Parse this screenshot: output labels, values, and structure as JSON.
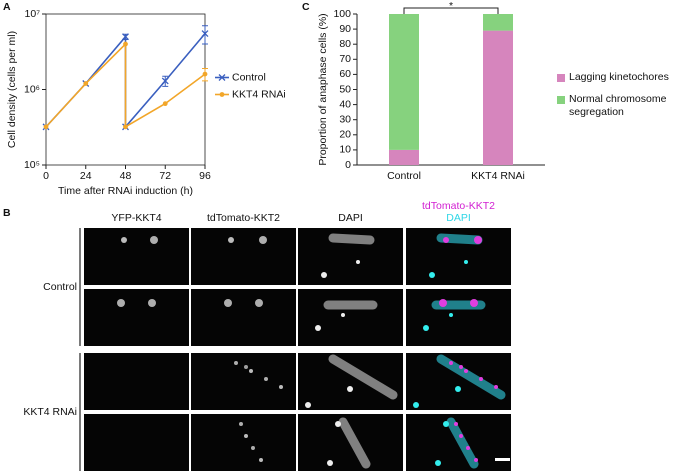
{
  "panels": [
    "A",
    "B",
    "C"
  ],
  "chart_data": [
    {
      "type": "line",
      "log_y": true,
      "x_label": "Time after RNAi induction (h)",
      "y_label": "Cell density (cells per ml)",
      "xlim": [
        0,
        96
      ],
      "xticks": [
        0,
        24,
        48,
        72,
        96
      ],
      "ylim": [
        100000,
        10000000
      ],
      "yticks": [
        {
          "value": 100000,
          "label": "10⁵"
        },
        {
          "value": 1000000,
          "label": "10⁶"
        },
        {
          "value": 10000000,
          "label": "10⁷"
        }
      ],
      "legend": "right",
      "series": [
        {
          "name": "Control",
          "color": "#3a5fbf",
          "marker": "x",
          "x": [
            0,
            24,
            48,
            48,
            72,
            96
          ],
          "values": [
            320000,
            1200000,
            5000000,
            320000,
            1300000,
            5500000
          ],
          "errors": [
            0,
            0,
            400000,
            0,
            200000,
            1500000
          ]
        },
        {
          "name": "KKT4 RNAi",
          "color": "#f2a629",
          "marker": "circle",
          "x": [
            0,
            24,
            48,
            48,
            72,
            96
          ],
          "values": [
            320000,
            1200000,
            4000000,
            320000,
            650000,
            1600000
          ],
          "errors": [
            0,
            0,
            0,
            0,
            0,
            300000
          ]
        }
      ]
    },
    {
      "type": "stacked_bar",
      "y_label": "Proportion of anaphase cells (%)",
      "categories": [
        "Control",
        "KKT4 RNAi"
      ],
      "ylim": [
        0,
        100
      ],
      "yticks": [
        0,
        10,
        20,
        30,
        40,
        50,
        60,
        70,
        80,
        90,
        100
      ],
      "annotation": "*",
      "legend": "right",
      "series": [
        {
          "name": "Lagging kinetochores",
          "color": "#d685bd",
          "values": [
            10,
            89
          ]
        },
        {
          "name": "Normal chromosome segregation",
          "color": "#86d27e",
          "values": [
            90,
            11
          ]
        }
      ]
    }
  ],
  "microscopy": {
    "columns": [
      "YFP-KKT4",
      "tdTomato-KKT2",
      "DAPI"
    ],
    "merge_label": [
      "tdTomato-KKT2",
      "DAPI"
    ],
    "rows": [
      "Control",
      "KKT4 RNAi"
    ]
  }
}
